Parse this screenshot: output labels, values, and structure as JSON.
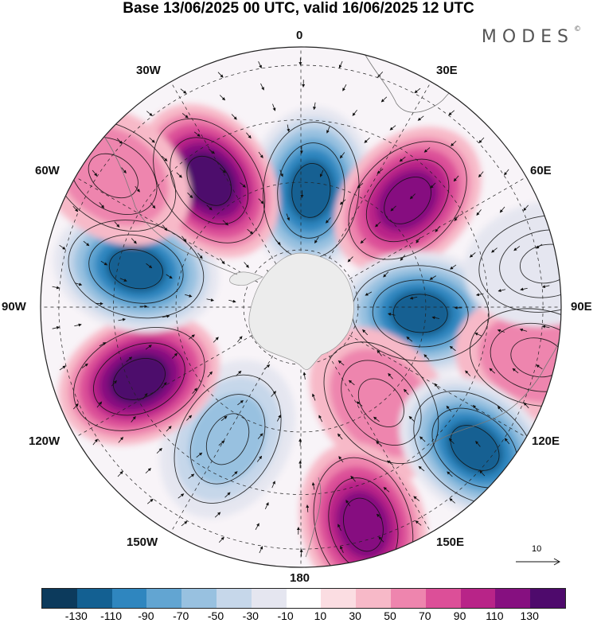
{
  "title": "Base 13/06/2025 00 UTC, valid 16/06/2025 12 UTC",
  "brand": {
    "text": "MODES",
    "mark": "©"
  },
  "longitude_labels": {
    "lon_0": "0",
    "lon_30e": "30E",
    "lon_60e": "60E",
    "lon_90e": "90E",
    "lon_120e": "120E",
    "lon_150e": "150E",
    "lon_180": "180",
    "lon_150w": "150W",
    "lon_120w": "120W",
    "lon_90w": "90W",
    "lon_60w": "60W",
    "lon_30w": "30W"
  },
  "reference_vector": {
    "label": "10"
  },
  "colorbar": {
    "colors": [
      "#0c3a5c",
      "#136092",
      "#2f86bf",
      "#62a5d2",
      "#98c1e0",
      "#c6d7ea",
      "#e5e6f0",
      "#ffffff",
      "#fbdde2",
      "#f7b9c8",
      "#ee85ae",
      "#dc4f98",
      "#b82488",
      "#861080",
      "#4e0a6c"
    ],
    "ticks": [
      "-130",
      "-110",
      "-90",
      "-70",
      "-50",
      "-30",
      "-10",
      "10",
      "30",
      "50",
      "70",
      "90",
      "110",
      "130"
    ]
  },
  "anomaly_centres": [
    {
      "value": -120,
      "lon": 5,
      "r": 0.45
    },
    {
      "value": 110,
      "lon": 45,
      "r": 0.58
    },
    {
      "value": -120,
      "lon": 93,
      "r": 0.46
    },
    {
      "value": 40,
      "lon": 102,
      "r": 0.93
    },
    {
      "value": 50,
      "lon": 140,
      "r": 0.48
    },
    {
      "value": -120,
      "lon": 129,
      "r": 0.86
    },
    {
      "value": 100,
      "lon": 164,
      "r": 0.87
    },
    {
      "value": -70,
      "lon": 209,
      "r": 0.58
    },
    {
      "value": 120,
      "lon": 246,
      "r": 0.68
    },
    {
      "value": -130,
      "lon": 283,
      "r": 0.65
    },
    {
      "value": 120,
      "lon": 324,
      "r": 0.6
    },
    {
      "value": 40,
      "lon": 305,
      "r": 0.88
    },
    {
      "value": -20,
      "lon": 80,
      "r": 0.96
    }
  ]
}
